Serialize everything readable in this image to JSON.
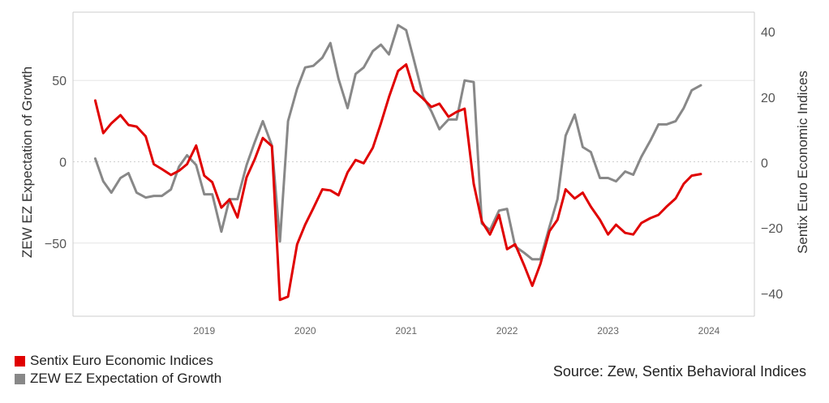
{
  "colors": {
    "sentix": "#e00000",
    "zew": "#888888"
  },
  "legend": {
    "items": [
      {
        "label": "Sentix Euro Economic Indices",
        "color": "#e00000"
      },
      {
        "label": "ZEW EZ Expectation of Growth",
        "color": "#888888"
      }
    ]
  },
  "source": "Source: Zew, Sentix Behavioral Indices",
  "chart_data": {
    "type": "line",
    "ylabel_left": "ZEW EZ Expectation of Growth",
    "ylabel_right": "Sentix Euro Economic Indices",
    "ylim_left": [
      -95,
      92
    ],
    "ylim_right": [
      -47,
      46
    ],
    "yticks_left": [
      50,
      0,
      -50
    ],
    "yticks_right": [
      40,
      20,
      0,
      -20,
      -40
    ],
    "xlim": [
      2018.2,
      2024.95
    ],
    "x_tick_labels": [
      "2019",
      "2020",
      "2021",
      "2022",
      "2023",
      "2024"
    ],
    "grid": "horizontal dotted",
    "legend_position": "bottom-left",
    "series": [
      {
        "name": "ZEW EZ Expectation of Growth",
        "axis": "left",
        "color": "#888888",
        "x": [
          2018.42,
          2018.5,
          2018.58,
          2018.67,
          2018.75,
          2018.83,
          2018.92,
          2019.0,
          2019.08,
          2019.17,
          2019.25,
          2019.33,
          2019.42,
          2019.5,
          2019.58,
          2019.67,
          2019.75,
          2019.83,
          2019.92,
          2020.0,
          2020.08,
          2020.17,
          2020.25,
          2020.33,
          2020.42,
          2020.5,
          2020.58,
          2020.67,
          2020.75,
          2020.83,
          2020.92,
          2021.0,
          2021.08,
          2021.17,
          2021.25,
          2021.33,
          2021.42,
          2021.5,
          2021.58,
          2021.67,
          2021.75,
          2021.83,
          2021.92,
          2022.0,
          2022.08,
          2022.17,
          2022.25,
          2022.33,
          2022.42,
          2022.5,
          2022.58,
          2022.67,
          2022.75,
          2022.83,
          2022.92,
          2023.0,
          2023.08,
          2023.17,
          2023.25,
          2023.33,
          2023.42,
          2023.5,
          2023.58,
          2023.67,
          2023.75,
          2023.83,
          2023.92,
          2024.0,
          2024.08,
          2024.17,
          2024.25,
          2024.33,
          2024.42
        ],
        "values": [
          2,
          -12,
          -19,
          -10,
          -7,
          -19,
          -22,
          -21,
          -21,
          -17,
          -3,
          4,
          -2,
          -20,
          -20,
          -43,
          -23,
          -23,
          -2,
          12,
          25,
          10,
          -49,
          25,
          45,
          58,
          59,
          64,
          73,
          51,
          33,
          54,
          58,
          68,
          72,
          66,
          84,
          81,
          62,
          40,
          31,
          20,
          26,
          26,
          50,
          49,
          -38,
          -42,
          -30,
          -29,
          -52,
          -56,
          -60,
          -60,
          -40,
          -23,
          16,
          29,
          9,
          6,
          -10,
          -10,
          -12,
          -6,
          -8,
          3,
          13,
          23,
          23,
          25,
          33,
          44,
          47
        ]
      },
      {
        "name": "Sentix Euro Economic Indices",
        "axis": "right",
        "color": "#e00000",
        "x": [
          2018.42,
          2018.5,
          2018.58,
          2018.67,
          2018.75,
          2018.83,
          2018.92,
          2019.0,
          2019.08,
          2019.17,
          2019.25,
          2019.33,
          2019.42,
          2019.5,
          2019.58,
          2019.67,
          2019.75,
          2019.83,
          2019.92,
          2020.0,
          2020.08,
          2020.17,
          2020.25,
          2020.33,
          2020.42,
          2020.5,
          2020.58,
          2020.67,
          2020.75,
          2020.83,
          2020.92,
          2021.0,
          2021.08,
          2021.17,
          2021.25,
          2021.33,
          2021.42,
          2021.5,
          2021.58,
          2021.67,
          2021.75,
          2021.83,
          2021.92,
          2022.0,
          2022.08,
          2022.17,
          2022.25,
          2022.33,
          2022.42,
          2022.5,
          2022.58,
          2022.67,
          2022.75,
          2022.83,
          2022.92,
          2023.0,
          2023.08,
          2023.17,
          2023.25,
          2023.33,
          2023.42,
          2023.5,
          2023.58,
          2023.67,
          2023.75,
          2023.83,
          2023.92,
          2024.0,
          2024.08,
          2024.17,
          2024.25,
          2024.33,
          2024.42
        ],
        "values": [
          19,
          9,
          12,
          14.5,
          11.5,
          11,
          8,
          -0.5,
          -2,
          -3.8,
          -2.5,
          -0.5,
          5.2,
          -4,
          -6,
          -13.8,
          -11.3,
          -16.8,
          -4.5,
          1,
          7.5,
          5,
          -42,
          -41,
          -25,
          -19,
          -14,
          -8.2,
          -8.5,
          -10,
          -3,
          0.8,
          -0.2,
          4.5,
          12,
          20,
          28,
          30,
          22,
          19.5,
          17,
          18,
          14,
          15.5,
          16.5,
          -6.5,
          -18,
          -22,
          -16,
          -26.5,
          -25,
          -31.5,
          -37.7,
          -31,
          -21,
          -17.5,
          -8.2,
          -11,
          -9.2,
          -13.5,
          -17.5,
          -22,
          -19,
          -21.5,
          -22,
          -18.5,
          -17,
          -16,
          -13.5,
          -11,
          -6.5,
          -4,
          -3.5
        ]
      }
    ]
  }
}
